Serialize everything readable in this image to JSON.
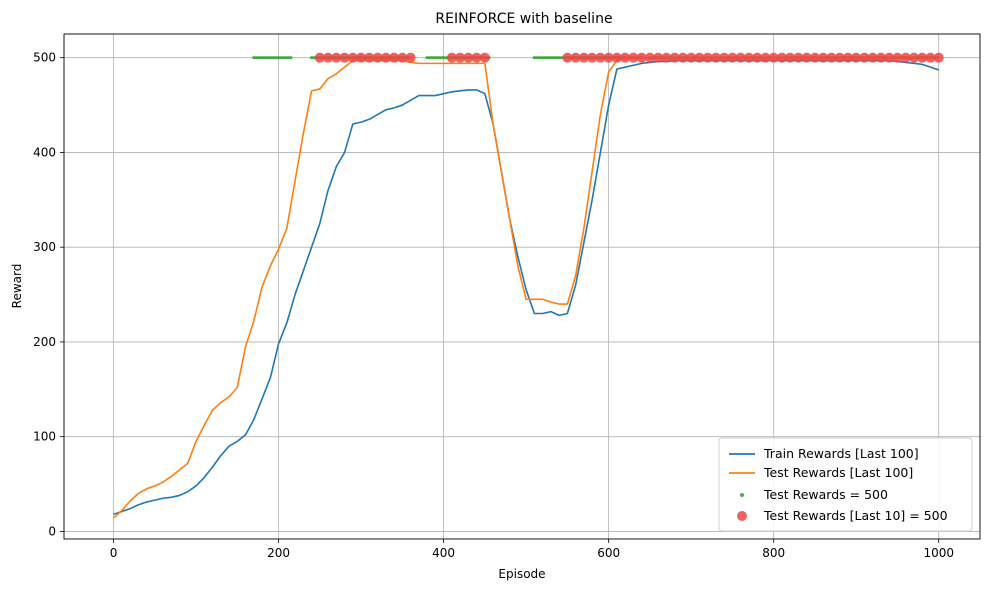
{
  "chart_data": {
    "type": "line",
    "title": "REINFORCE with baseline",
    "xlabel": "Episode",
    "ylabel": "Reward",
    "xlim": [
      -60,
      1050
    ],
    "ylim": [
      -8,
      525
    ],
    "xticks": [
      0,
      200,
      400,
      600,
      800,
      1000
    ],
    "yticks": [
      0,
      100,
      200,
      300,
      400,
      500
    ],
    "grid": true,
    "legend_position": "lower-right",
    "colors": {
      "train": "#1f77b4",
      "test": "#ff7f0e",
      "test500": "#2ca02c",
      "last10": "#ef4444",
      "grid": "#b0b0b0"
    },
    "series": [
      {
        "name": "Train Rewards [Last 100]",
        "kind": "line",
        "color": "#1f77b4",
        "x": [
          0,
          10,
          20,
          30,
          40,
          50,
          60,
          70,
          80,
          90,
          100,
          110,
          120,
          130,
          140,
          150,
          160,
          170,
          180,
          190,
          200,
          210,
          220,
          230,
          240,
          250,
          260,
          270,
          280,
          290,
          300,
          310,
          320,
          330,
          340,
          350,
          360,
          370,
          380,
          390,
          400,
          410,
          420,
          430,
          440,
          450,
          460,
          470,
          480,
          490,
          500,
          510,
          520,
          530,
          540,
          550,
          560,
          570,
          580,
          590,
          600,
          610,
          620,
          630,
          640,
          650,
          660,
          670,
          680,
          690,
          700,
          710,
          720,
          730,
          740,
          750,
          760,
          770,
          780,
          790,
          800,
          810,
          820,
          830,
          840,
          850,
          860,
          870,
          880,
          890,
          900,
          910,
          920,
          930,
          940,
          950,
          960,
          970,
          980,
          990,
          1000
        ],
        "values": [
          18,
          21,
          24,
          28,
          31,
          33,
          35,
          36,
          38,
          42,
          48,
          57,
          68,
          80,
          90,
          95,
          102,
          118,
          140,
          162,
          198,
          220,
          250,
          275,
          300,
          325,
          360,
          385,
          400,
          430,
          432,
          435,
          440,
          445,
          447,
          450,
          455,
          460,
          460,
          460,
          462,
          464,
          465,
          466,
          466,
          462,
          430,
          380,
          330,
          290,
          255,
          230,
          230,
          232,
          228,
          230,
          260,
          305,
          350,
          400,
          450,
          488,
          490,
          492,
          494,
          495,
          496,
          496,
          497,
          497,
          497,
          497,
          497,
          497,
          497,
          497,
          497,
          497,
          497,
          497,
          497,
          497,
          497,
          497,
          497,
          497,
          497,
          497,
          497,
          497,
          497,
          497,
          497,
          497,
          497,
          496,
          495,
          494,
          493,
          490,
          487
        ]
      },
      {
        "name": "Test Rewards [Last 100]",
        "kind": "line",
        "color": "#ff7f0e",
        "x": [
          0,
          10,
          20,
          30,
          40,
          50,
          60,
          70,
          80,
          90,
          100,
          110,
          120,
          130,
          140,
          150,
          160,
          170,
          180,
          190,
          200,
          210,
          220,
          230,
          240,
          250,
          260,
          270,
          280,
          290,
          300,
          310,
          320,
          330,
          340,
          350,
          360,
          370,
          380,
          390,
          400,
          410,
          420,
          430,
          440,
          450,
          460,
          470,
          480,
          490,
          500,
          510,
          520,
          530,
          540,
          550,
          560,
          570,
          580,
          590,
          600,
          610,
          620,
          630,
          640,
          650,
          660,
          670,
          680,
          690,
          700,
          710,
          720,
          730,
          740,
          750,
          760,
          770,
          780,
          790,
          800,
          810,
          820,
          830,
          840,
          850,
          860,
          870,
          880,
          890,
          900,
          910,
          920,
          930,
          940,
          950,
          960,
          970,
          980,
          990,
          1000
        ],
        "values": [
          14,
          22,
          32,
          40,
          45,
          48,
          52,
          58,
          65,
          72,
          95,
          112,
          128,
          136,
          142,
          152,
          195,
          222,
          258,
          280,
          298,
          320,
          370,
          420,
          465,
          467,
          478,
          483,
          490,
          497,
          497,
          497,
          497,
          497,
          497,
          497,
          495,
          494,
          494,
          494,
          494,
          494,
          494,
          494,
          494,
          494,
          430,
          380,
          330,
          280,
          245,
          245,
          245,
          242,
          240,
          240,
          270,
          320,
          380,
          440,
          485,
          497,
          499,
          500,
          500,
          500,
          500,
          500,
          500,
          500,
          500,
          500,
          500,
          500,
          500,
          500,
          500,
          500,
          500,
          500,
          500,
          500,
          500,
          500,
          500,
          500,
          500,
          500,
          500,
          500,
          500,
          500,
          500,
          500,
          500,
          500,
          500,
          500,
          500,
          500,
          500
        ]
      },
      {
        "name": "Test Rewards = 500",
        "kind": "scatter",
        "color": "#2ca02c",
        "segments": [
          [
            170,
            215
          ],
          [
            240,
            360
          ],
          [
            380,
            455
          ],
          [
            510,
            640
          ],
          [
            650,
            1000
          ]
        ],
        "value": 500
      },
      {
        "name": "Test Rewards [Last 10] = 500",
        "kind": "scatter",
        "color": "#ef4444",
        "segments": [
          [
            250,
            360
          ],
          [
            410,
            450
          ],
          [
            550,
            1000
          ]
        ],
        "value": 500
      }
    ]
  }
}
